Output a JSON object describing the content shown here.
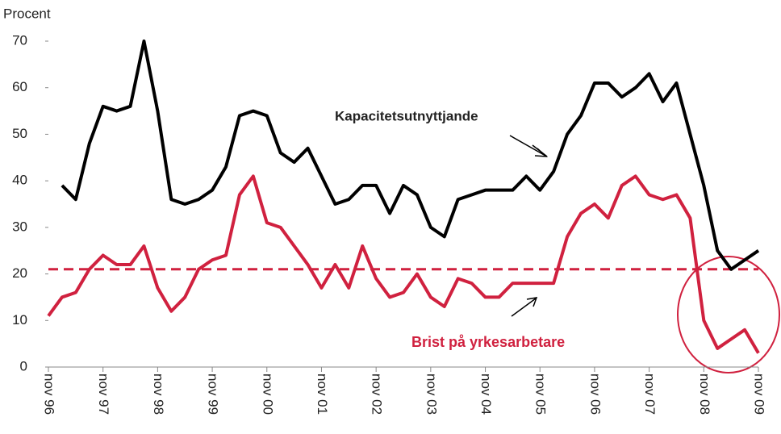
{
  "chart_data": {
    "type": "line",
    "y_label": "Procent",
    "categories": [
      "nov 96",
      null,
      null,
      null,
      "nov 97",
      null,
      null,
      null,
      "nov 98",
      null,
      null,
      null,
      "nov 99",
      null,
      null,
      null,
      "nov 00",
      null,
      null,
      null,
      "nov 01",
      null,
      null,
      null,
      "nov 02",
      null,
      null,
      null,
      "nov 03",
      null,
      null,
      null,
      "nov 04",
      null,
      null,
      null,
      "nov 05",
      null,
      null,
      null,
      "nov 06",
      null,
      null,
      null,
      "nov 07",
      null,
      null,
      null,
      "nov 08",
      null,
      null,
      null,
      "nov 09"
    ],
    "series": [
      {
        "name": "Kapacitetsutnyttjande",
        "color": "#000000",
        "values": [
          null,
          39,
          36,
          48,
          56,
          55,
          56,
          70,
          55,
          36,
          35,
          36,
          38,
          43,
          54,
          55,
          54,
          46,
          44,
          47,
          41,
          35,
          36,
          39,
          39,
          33,
          39,
          37,
          30,
          28,
          36,
          37,
          38,
          38,
          38,
          41,
          38,
          42,
          50,
          54,
          61,
          61,
          58,
          60,
          63,
          57,
          61,
          50,
          39,
          25,
          21,
          23,
          25
        ]
      },
      {
        "name": "Brist på yrkesarbetare",
        "color": "#d0213f",
        "values": [
          11,
          15,
          16,
          21,
          24,
          22,
          22,
          26,
          17,
          12,
          15,
          21,
          23,
          24,
          37,
          41,
          31,
          30,
          26,
          22,
          17,
          22,
          17,
          26,
          19,
          15,
          16,
          20,
          15,
          13,
          19,
          18,
          15,
          15,
          18,
          18,
          18,
          18,
          28,
          33,
          35,
          32,
          39,
          41,
          37,
          36,
          37,
          32,
          10,
          4,
          6,
          8,
          3
        ]
      }
    ],
    "reference_line": {
      "value": 21,
      "color": "#d0213f"
    },
    "ylim": [
      0,
      70
    ],
    "yticks": [
      0,
      10,
      20,
      30,
      40,
      50,
      60,
      70
    ],
    "grid": false
  }
}
